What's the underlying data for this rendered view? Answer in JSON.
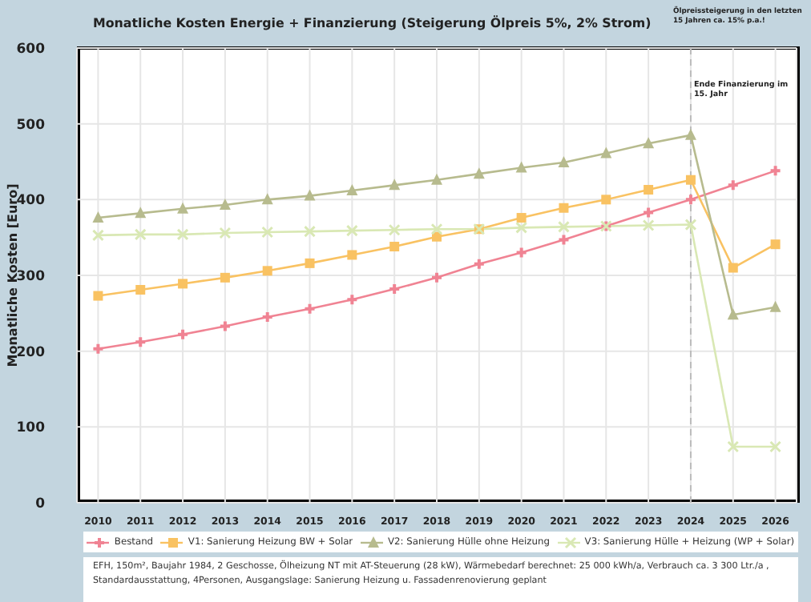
{
  "chart_data": {
    "type": "line",
    "title": "Monatliche Kosten Energie + Finanzierung (Steigerung Ölpreis 5%, 2% Strom)",
    "ylabel": "Monatliche Kosten [Euro]",
    "categories": [
      "2010",
      "2011",
      "2012",
      "2013",
      "2014",
      "2015",
      "2016",
      "2017",
      "2018",
      "2019",
      "2020",
      "2021",
      "2022",
      "2023",
      "2024",
      "2025",
      "2026"
    ],
    "series": [
      {
        "name": "Bestand",
        "color": "#f08393",
        "marker": "cross",
        "values": [
          203,
          212,
          222,
          233,
          245,
          256,
          268,
          282,
          297,
          315,
          330,
          347,
          365,
          383,
          400,
          419,
          438
        ]
      },
      {
        "name": "V1: Sanierung Heizung BW + Solar",
        "color": "#f9c262",
        "marker": "square",
        "values": [
          273,
          281,
          289,
          297,
          306,
          316,
          327,
          338,
          351,
          361,
          376,
          389,
          400,
          413,
          426,
          310,
          341
        ]
      },
      {
        "name": "V2: Sanierung Hülle ohne Heizung",
        "color": "#b7bb8e",
        "marker": "triangle",
        "values": [
          376,
          382,
          388,
          393,
          400,
          405,
          412,
          419,
          426,
          434,
          442,
          449,
          461,
          474,
          485,
          248,
          258
        ]
      },
      {
        "name": "V3: Sanierung Hülle + Heizung (WP + Solar)",
        "color": "#d9e8b4",
        "marker": "x",
        "values": [
          353,
          354,
          354,
          356,
          357,
          358,
          359,
          360,
          361,
          361,
          363,
          364,
          365,
          366,
          367,
          74,
          74
        ]
      }
    ],
    "ylim": [
      0,
      600
    ],
    "yticks": [
      0,
      100,
      200,
      300,
      400,
      500,
      600
    ],
    "grid": true,
    "legend": "bottom",
    "ref_lines": [
      {
        "axis": "x",
        "value": "2024",
        "label": "Ende Finanzierung im 15. Jahr",
        "color": "#bbbbbb",
        "line_style": "dashed"
      }
    ],
    "annotations": [
      "Ölpreissteigerung in den letzten 15 Jahren ca. 15% p.a.!",
      "EFH, 150m², Baujahr 1984, 2 Geschosse, Ölheizung NT mit AT-Steuerung (28 kW), Wärmebedarf berechnet: 25 000 kWh/a, Verbrauch ca. 3 300 Ltr./a , Standardausstattung,  4Personen, Ausgangslage: Sanierung Heizung u. Fassadenrenovierung geplant"
    ]
  }
}
